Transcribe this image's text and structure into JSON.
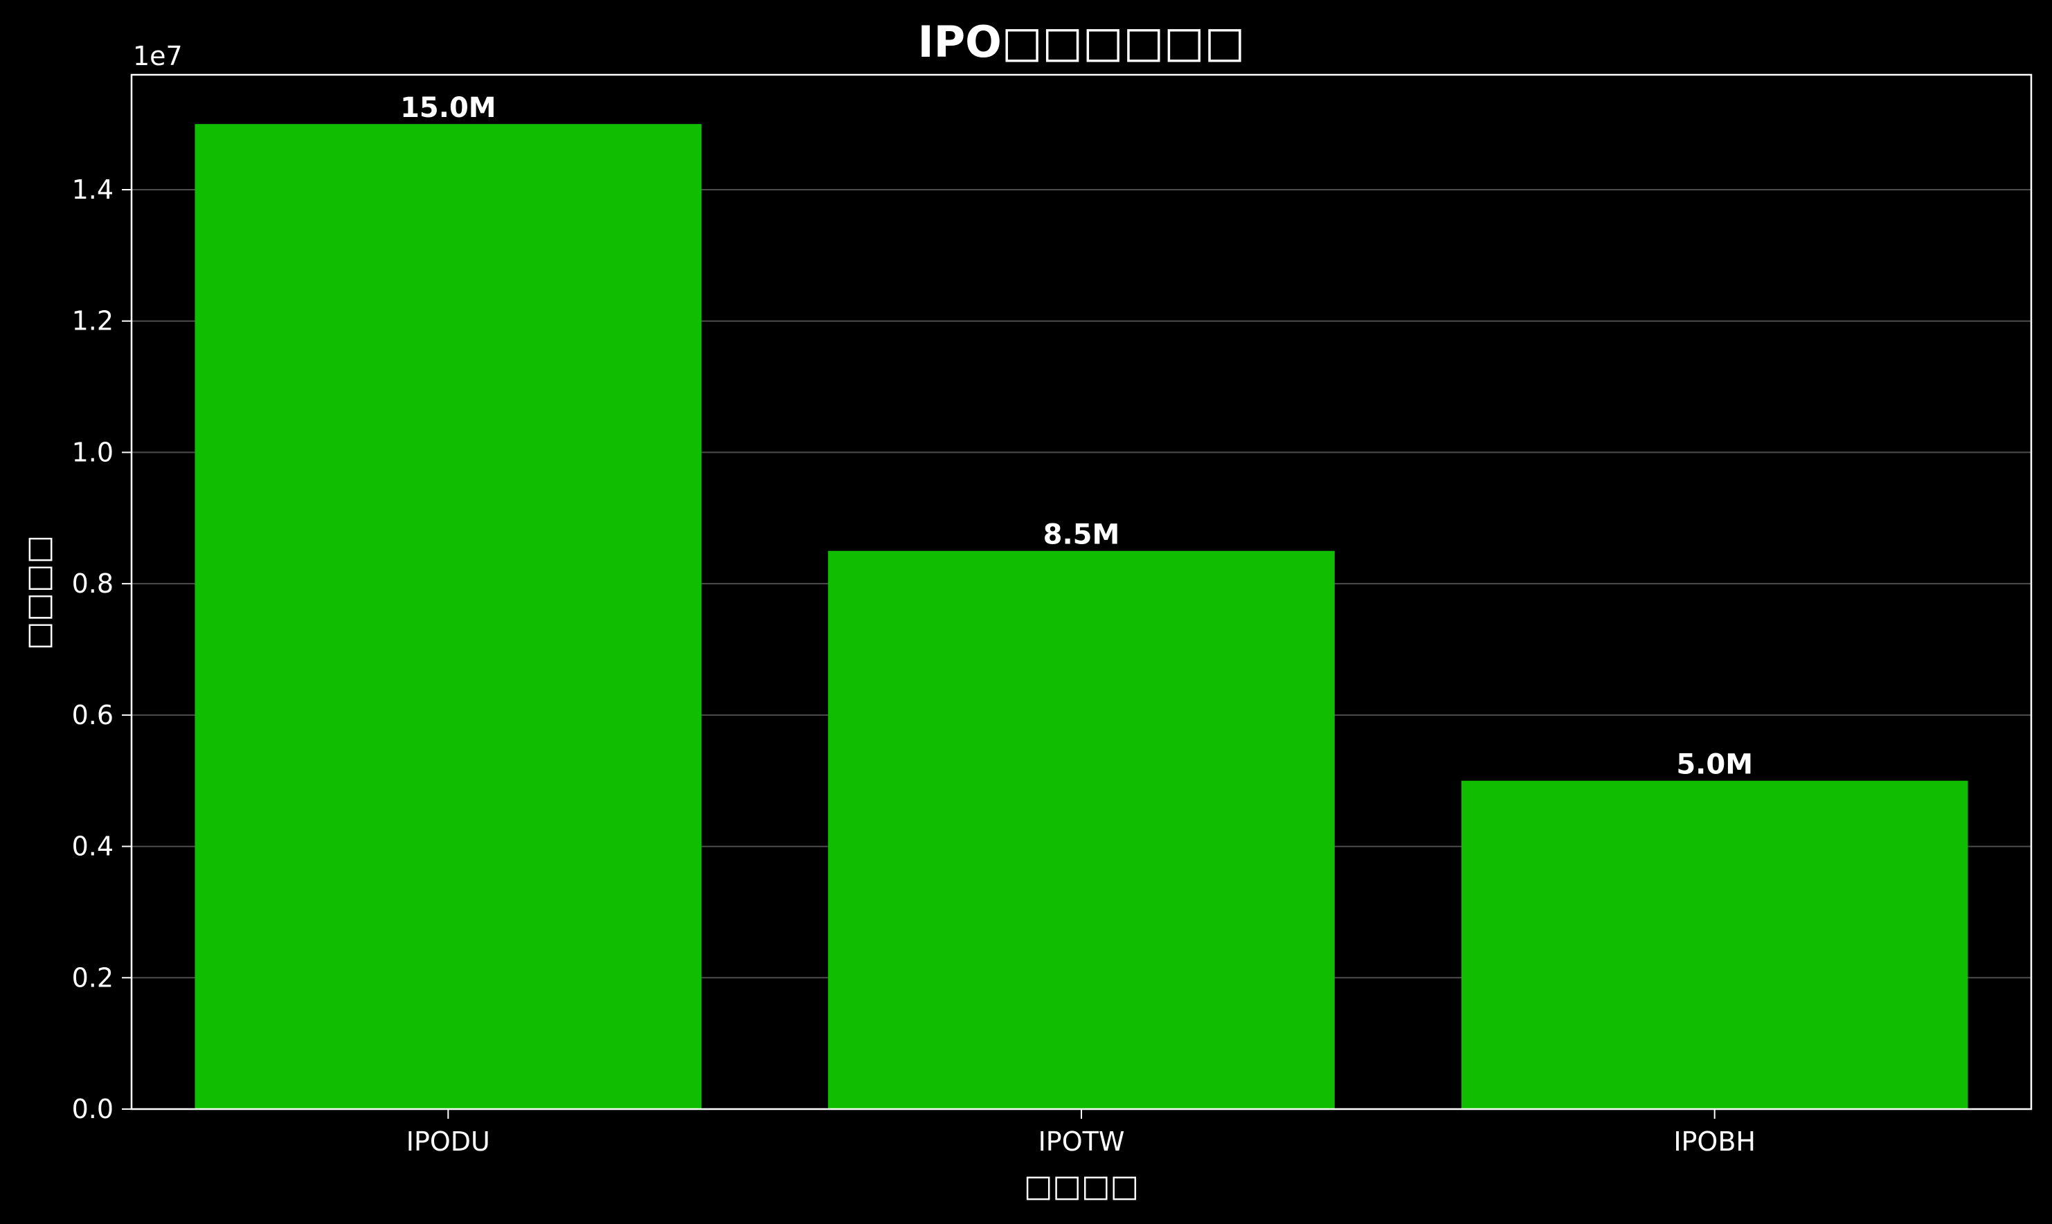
{
  "chart_data": {
    "type": "bar",
    "title": "IPO□□□□□□",
    "xlabel": "□□□□",
    "ylabel": "□□□□",
    "y_offset_label": "1e7",
    "categories": [
      "IPODU",
      "IPOTW",
      "IPOBH"
    ],
    "values": [
      15000000,
      8500000,
      5000000
    ],
    "value_labels": [
      "15.0M",
      "8.5M",
      "5.0M"
    ],
    "ylim": [
      0,
      15750000
    ],
    "y_ticks": [
      0,
      2000000,
      4000000,
      6000000,
      8000000,
      10000000,
      12000000,
      14000000
    ],
    "y_tick_labels": [
      "0.0",
      "0.2",
      "0.4",
      "0.6",
      "0.8",
      "1.0",
      "1.2",
      "1.4"
    ],
    "grid": "y",
    "colors": {
      "background": "#000000",
      "bar": "#11bd00",
      "text": "#ffffff",
      "grid": "#ffffff"
    }
  }
}
